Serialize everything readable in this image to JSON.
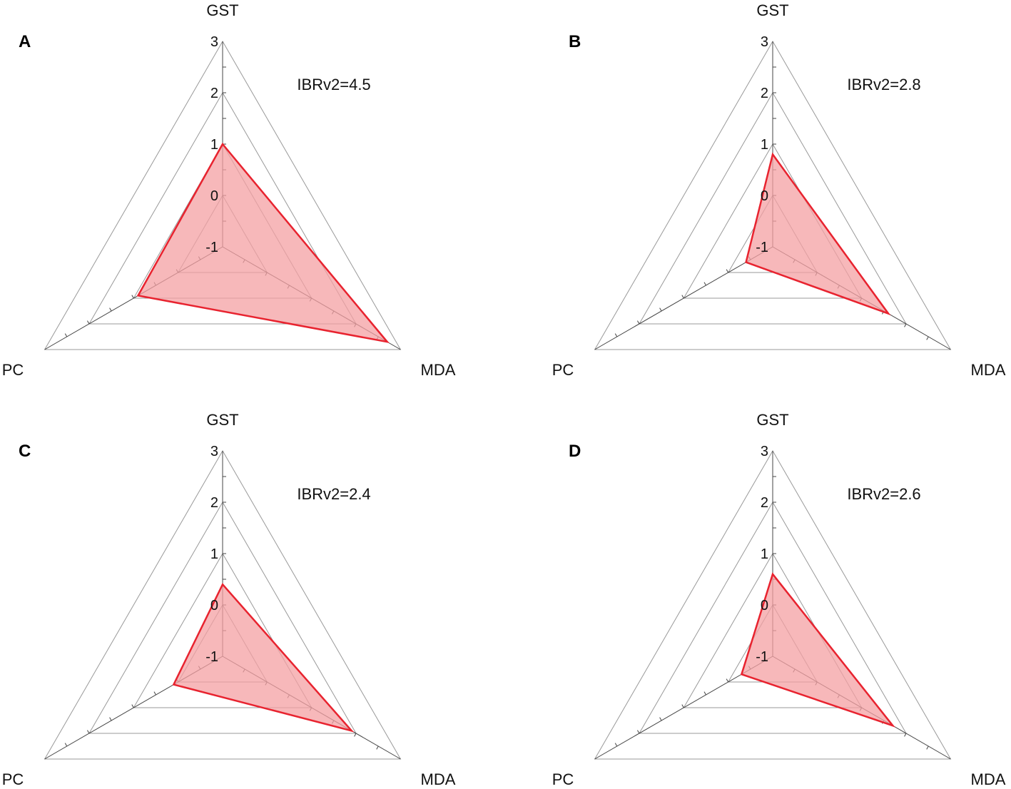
{
  "chart_data": [
    {
      "type": "radar",
      "panel": "A",
      "title": "IBRv2=4.5",
      "axes": [
        "GST",
        "MDA",
        "PC"
      ],
      "values": [
        1.0,
        2.7,
        0.9
      ],
      "range": [
        -1,
        3
      ],
      "ticks": [
        "3",
        "2",
        "1",
        "0",
        "-1"
      ]
    },
    {
      "type": "radar",
      "panel": "B",
      "title": "IBRv2=2.8",
      "axes": [
        "GST",
        "MDA",
        "PC"
      ],
      "values": [
        0.8,
        1.6,
        -0.4
      ],
      "range": [
        -1,
        3
      ],
      "ticks": [
        "3",
        "2",
        "1",
        "0",
        "-1"
      ]
    },
    {
      "type": "radar",
      "panel": "C",
      "title": "IBRv2=2.4",
      "axes": [
        "GST",
        "MDA",
        "PC"
      ],
      "values": [
        0.4,
        1.9,
        0.1
      ],
      "range": [
        -1,
        3
      ],
      "ticks": [
        "3",
        "2",
        "1",
        "0",
        "-1"
      ]
    },
    {
      "type": "radar",
      "panel": "D",
      "title": "IBRv2=2.6",
      "axes": [
        "GST",
        "MDA",
        "PC"
      ],
      "values": [
        0.6,
        1.7,
        -0.3
      ],
      "range": [
        -1,
        3
      ],
      "ticks": [
        "3",
        "2",
        "1",
        "0",
        "-1"
      ]
    }
  ],
  "colors": {
    "line": "#e8232f",
    "fill": "#f4a0a3",
    "grid": "#999999",
    "axis": "#444444"
  }
}
